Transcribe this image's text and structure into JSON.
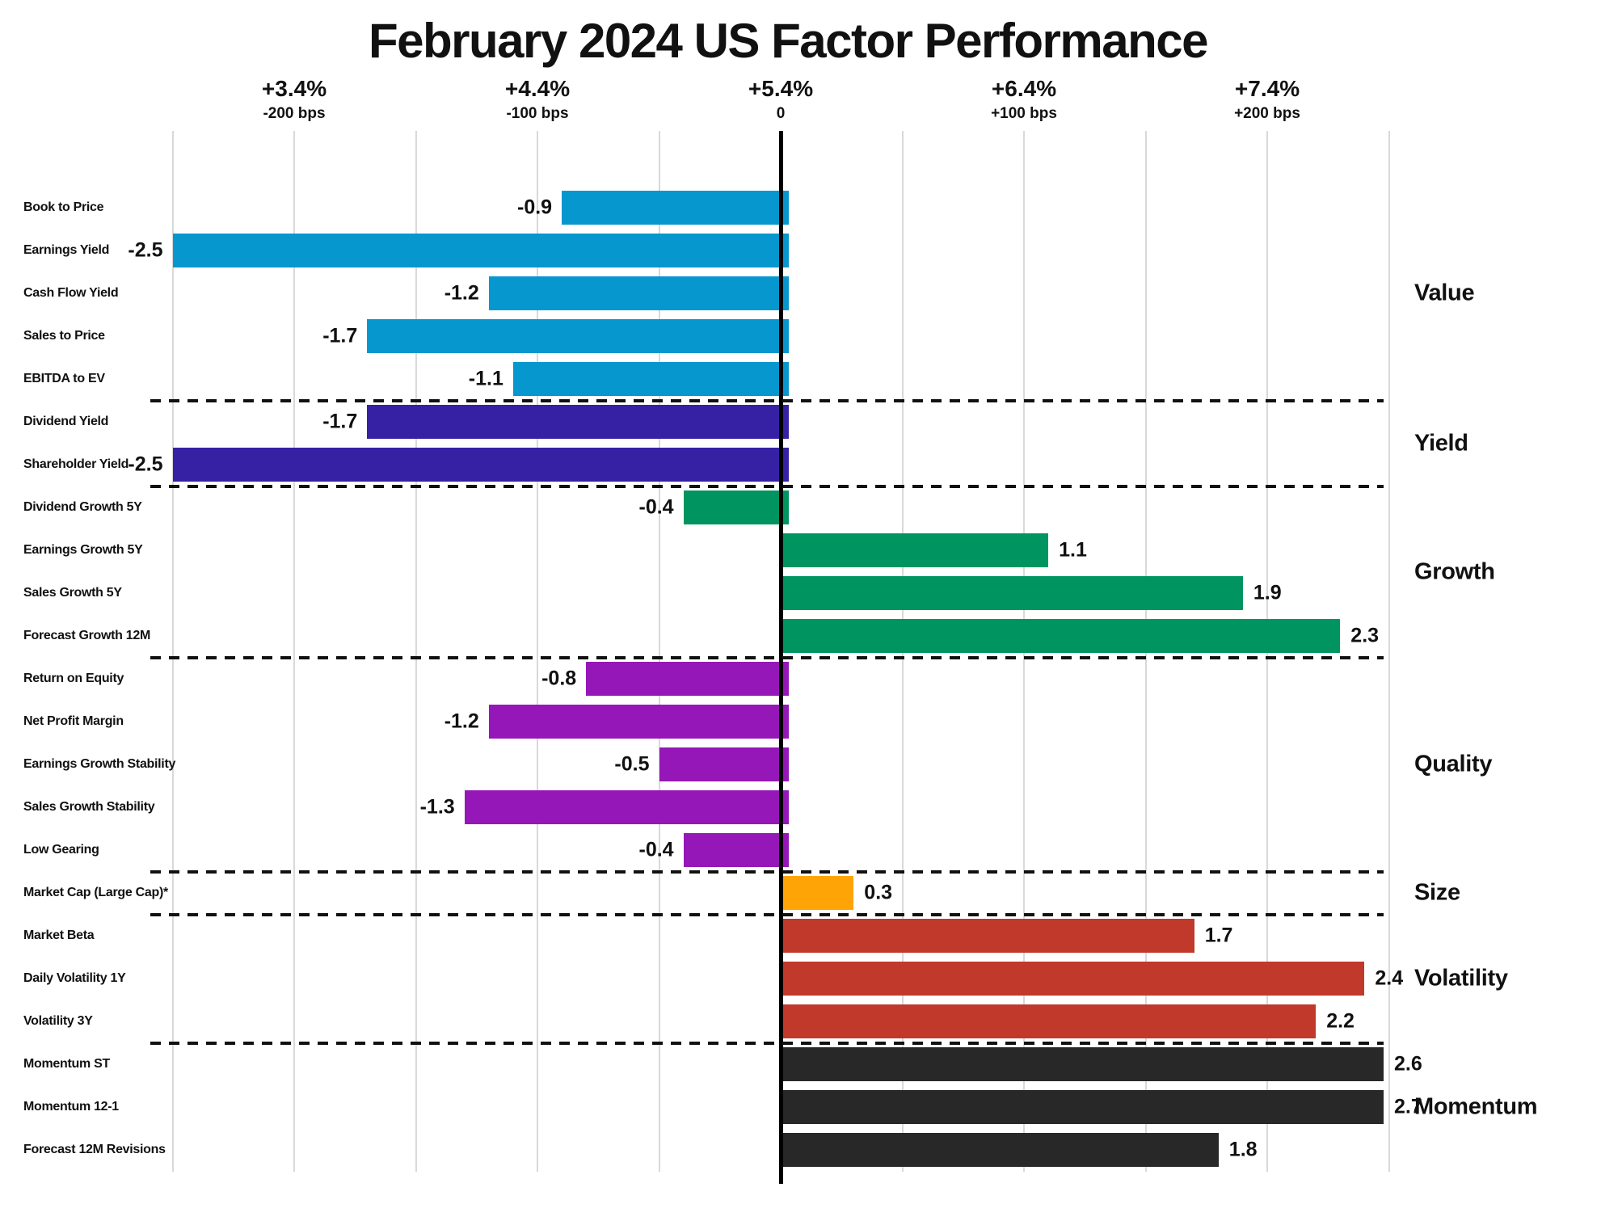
{
  "title": "February 2024 US Factor Performance",
  "chart_data": {
    "type": "bar",
    "orientation": "horizontal",
    "title": "February 2024 US Factor Performance",
    "value_unit": "percentage points (1.0 = 100 bps); axis shows cumulative return, 0 = +5.4%",
    "x_axis": {
      "range_bps": [
        -250,
        250
      ],
      "gridline_step_bps": 50,
      "grid": true,
      "ticks": [
        {
          "pct_label": "+3.4%",
          "bps_label": "-200 bps",
          "bps": -200
        },
        {
          "pct_label": "+4.4%",
          "bps_label": "-100 bps",
          "bps": -100
        },
        {
          "pct_label": "+5.4%",
          "bps_label": "0",
          "bps": 0
        },
        {
          "pct_label": "+6.4%",
          "bps_label": "+100 bps",
          "bps": 100
        },
        {
          "pct_label": "+7.4%",
          "bps_label": "+200 bps",
          "bps": 200
        }
      ]
    },
    "groups": [
      {
        "name": "Value",
        "color": "#0697ce",
        "factors": [
          {
            "label": "Book to Price",
            "value": -0.9
          },
          {
            "label": "Earnings Yield",
            "value": -2.5
          },
          {
            "label": "Cash Flow Yield",
            "value": -1.2
          },
          {
            "label": "Sales to Price",
            "value": -1.7
          },
          {
            "label": "EBITDA to EV",
            "value": -1.1
          }
        ]
      },
      {
        "name": "Yield",
        "color": "#3621a5",
        "factors": [
          {
            "label": "Dividend Yield",
            "value": -1.7
          },
          {
            "label": "Shareholder Yield",
            "value": -2.5
          }
        ]
      },
      {
        "name": "Growth",
        "color": "#009560",
        "factors": [
          {
            "label": "Dividend Growth 5Y",
            "value": -0.4
          },
          {
            "label": "Earnings Growth 5Y",
            "value": 1.1
          },
          {
            "label": "Sales Growth 5Y",
            "value": 1.9
          },
          {
            "label": "Forecast Growth 12M",
            "value": 2.3
          }
        ]
      },
      {
        "name": "Quality",
        "color": "#9517b8",
        "factors": [
          {
            "label": "Return on Equity",
            "value": -0.8
          },
          {
            "label": "Net Profit Margin",
            "value": -1.2
          },
          {
            "label": "Earnings Growth Stability",
            "value": -0.5
          },
          {
            "label": "Sales Growth Stability",
            "value": -1.3
          },
          {
            "label": "Low Gearing",
            "value": -0.4
          }
        ]
      },
      {
        "name": "Size",
        "color": "#ffa406",
        "factors": [
          {
            "label": "Market Cap (Large Cap)*",
            "value": 0.3
          }
        ]
      },
      {
        "name": "Volatility",
        "color": "#c0392b",
        "factors": [
          {
            "label": "Market Beta",
            "value": 1.7
          },
          {
            "label": "Daily Volatility 1Y",
            "value": 2.4
          },
          {
            "label": "Volatility 3Y",
            "value": 2.2
          }
        ]
      },
      {
        "name": "Momentum",
        "color": "#282828",
        "factors": [
          {
            "label": "Momentum ST",
            "value": 2.6
          },
          {
            "label": "Momentum 12-1",
            "value": 2.7
          },
          {
            "label": "Forecast 12M Revisions",
            "value": 1.8
          }
        ]
      }
    ]
  }
}
